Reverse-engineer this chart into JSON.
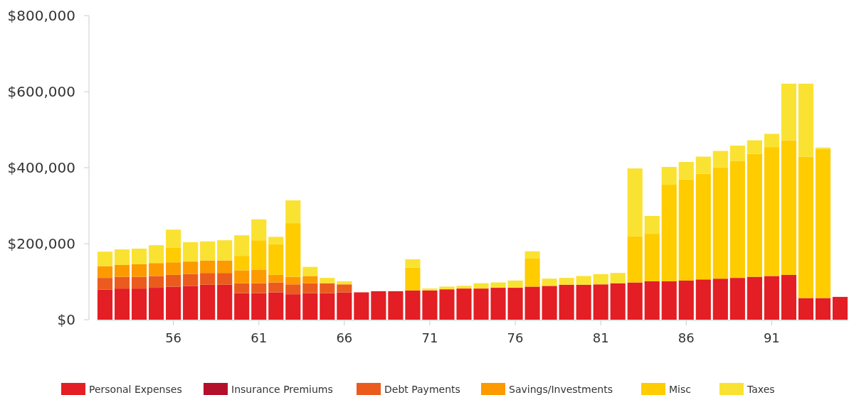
{
  "chart_data": {
    "type": "bar",
    "stacked": true,
    "legend": "bottom",
    "grid": false,
    "categories": [
      null,
      null,
      null,
      null,
      "56",
      null,
      null,
      null,
      null,
      "61",
      null,
      null,
      null,
      null,
      "66",
      null,
      null,
      null,
      null,
      "71",
      null,
      null,
      null,
      null,
      "76",
      null,
      null,
      null,
      null,
      "81",
      null,
      null,
      null,
      null,
      "86",
      null,
      null,
      null,
      null,
      "91",
      null,
      null,
      null,
      null
    ],
    "ylim": [
      0,
      800000
    ],
    "yticks": [
      {
        "value": 0,
        "label": "$0"
      },
      {
        "value": 200000,
        "label": "$200,000"
      },
      {
        "value": 400000,
        "label": "$400,000"
      },
      {
        "value": 600000,
        "label": "$600,000"
      },
      {
        "value": 800000,
        "label": "$800,000"
      }
    ],
    "series": [
      {
        "name": "Personal Expenses",
        "color": "#e31e24",
        "values": [
          79000,
          82000,
          82000,
          84000,
          87000,
          89000,
          92000,
          92000,
          70000,
          70000,
          72000,
          67000,
          70000,
          70000,
          72000,
          72000,
          75000,
          75000,
          77000,
          77000,
          80000,
          82000,
          82000,
          84000,
          84000,
          87000,
          89000,
          92000,
          92000,
          93000,
          96000,
          98000,
          101000,
          101000,
          103000,
          106000,
          108000,
          110000,
          113000,
          115000,
          118000,
          57000,
          57000,
          60000
        ]
      },
      {
        "name": "Insurance Premiums",
        "color": "#b5102b",
        "values": [
          0,
          0,
          0,
          0,
          0,
          0,
          0,
          0,
          0,
          0,
          0,
          0,
          0,
          0,
          0,
          0,
          0,
          0,
          0,
          0,
          0,
          0,
          0,
          0,
          0,
          0,
          0,
          0,
          0,
          0,
          0,
          0,
          0,
          0,
          0,
          0,
          0,
          0,
          0,
          0,
          0,
          0,
          0,
          0
        ]
      },
      {
        "name": "Debt Payments",
        "color": "#eb5b1e",
        "values": [
          31000,
          31000,
          31000,
          31000,
          31000,
          31000,
          31000,
          31000,
          26000,
          26000,
          26000,
          26000,
          26000,
          26000,
          21000,
          0,
          0,
          0,
          0,
          0,
          0,
          0,
          0,
          0,
          0,
          0,
          0,
          0,
          0,
          0,
          0,
          0,
          0,
          0,
          0,
          0,
          0,
          0,
          0,
          0,
          0,
          0,
          0,
          0
        ]
      },
      {
        "name": "Savings/Investments",
        "color": "#fd9a00",
        "values": [
          31000,
          31000,
          33000,
          34000,
          33000,
          33000,
          33000,
          33000,
          34000,
          36000,
          20000,
          20000,
          19000,
          0,
          0,
          0,
          0,
          0,
          0,
          0,
          0,
          0,
          0,
          0,
          0,
          0,
          0,
          0,
          0,
          0,
          0,
          0,
          0,
          0,
          0,
          0,
          0,
          0,
          0,
          0,
          0,
          0,
          0,
          0
        ]
      },
      {
        "name": "Misc",
        "color": "#ffcc00",
        "values": [
          0,
          0,
          0,
          0,
          38000,
          0,
          0,
          0,
          38000,
          77000,
          81000,
          141000,
          0,
          0,
          0,
          0,
          0,
          0,
          60000,
          0,
          0,
          0,
          0,
          0,
          0,
          74000,
          0,
          0,
          0,
          0,
          0,
          121000,
          125000,
          254000,
          266000,
          278000,
          293000,
          307000,
          323000,
          339000,
          354000,
          372000,
          392000,
          0
        ]
      },
      {
        "name": "Taxes",
        "color": "#fae232",
        "values": [
          38000,
          41000,
          41000,
          47000,
          48000,
          51000,
          50000,
          53000,
          54000,
          55000,
          19000,
          60000,
          24000,
          14000,
          8000,
          0,
          0,
          0,
          22000,
          5000,
          7000,
          7000,
          14000,
          14000,
          19000,
          19000,
          19000,
          18000,
          23000,
          27000,
          27000,
          179000,
          47000,
          47000,
          46000,
          45000,
          43000,
          41000,
          36000,
          35000,
          149000,
          192000,
          4000,
          0
        ]
      }
    ]
  }
}
